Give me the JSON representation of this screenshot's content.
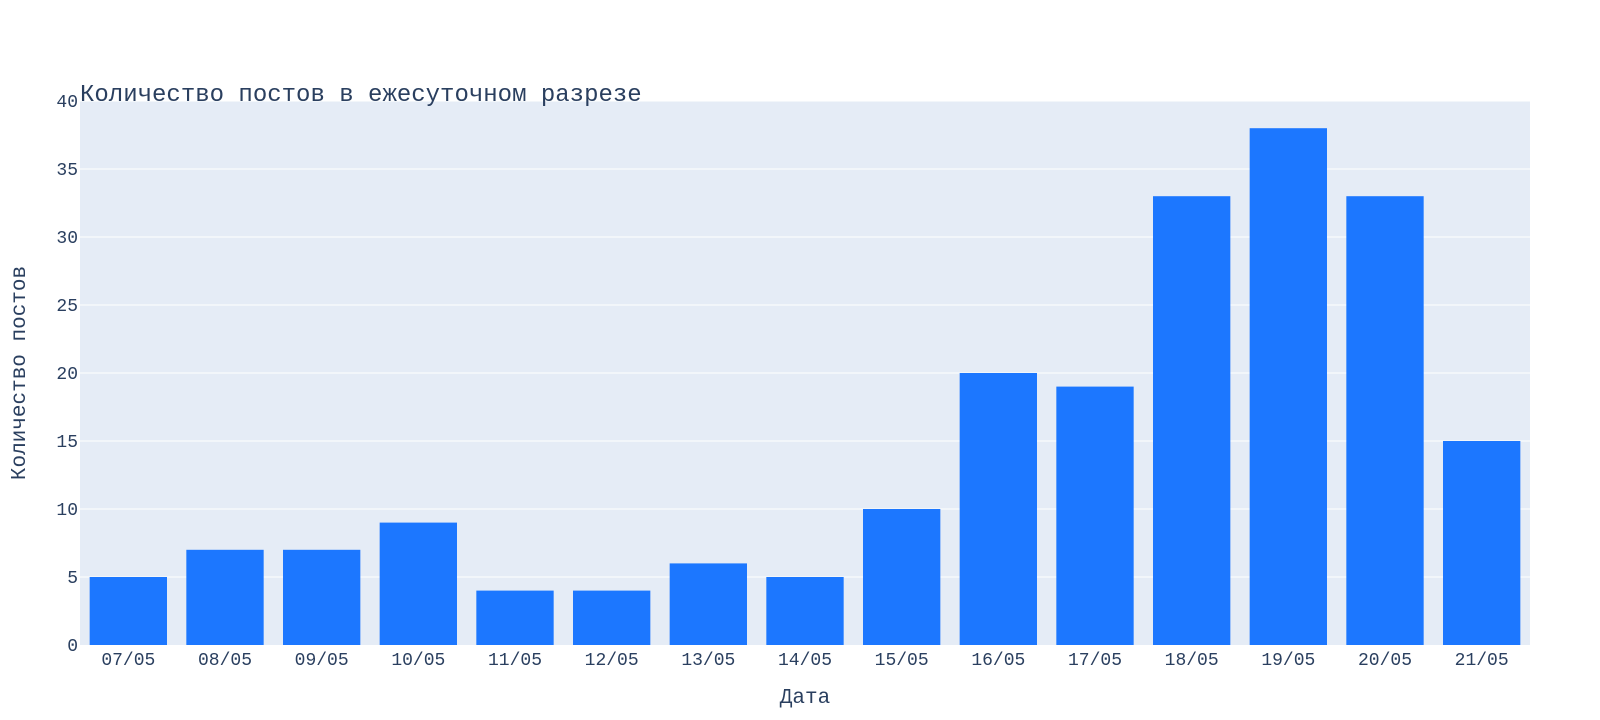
{
  "chart_data": {
    "type": "bar",
    "title": "Количество постов в ежесуточном разрезе",
    "xlabel": "Дата",
    "ylabel": "Количество постов",
    "categories": [
      "07/05",
      "08/05",
      "09/05",
      "10/05",
      "11/05",
      "12/05",
      "13/05",
      "14/05",
      "15/05",
      "16/05",
      "17/05",
      "18/05",
      "19/05",
      "20/05",
      "21/05"
    ],
    "values": [
      5,
      7,
      7,
      9,
      4,
      4,
      6,
      5,
      10,
      20,
      19,
      33,
      38,
      33,
      15
    ],
    "ylim": [
      0,
      40
    ],
    "yticks": [
      0,
      5,
      10,
      15,
      20,
      25,
      30,
      35,
      40
    ],
    "grid": true,
    "colors": {
      "bar": "#1c77ff",
      "plot_bg": "#e5ecf6",
      "grid": "#ffffff",
      "text": "#2a3f5f"
    }
  }
}
